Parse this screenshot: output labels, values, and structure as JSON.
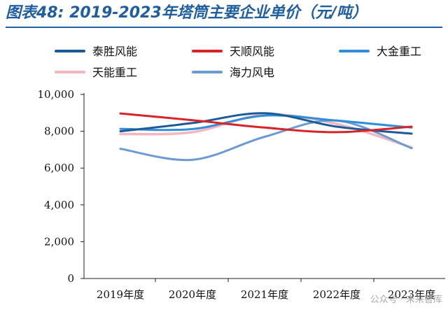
{
  "title": "图表48:  2019-2023年塔筒主要企业单价（元/吨）",
  "watermark": "公众号 · 未来智库",
  "chart_data": {
    "type": "line",
    "categories": [
      "2019年度",
      "2020年度",
      "2021年度",
      "2022年度",
      "2023年度"
    ],
    "ylim": [
      0,
      10000
    ],
    "yticks": [
      "0",
      "2,000",
      "4,000",
      "6,000",
      "8,000",
      "10,000"
    ],
    "ytick_values": [
      0,
      2000,
      4000,
      6000,
      8000,
      10000
    ],
    "grid": false,
    "legend_position": "top",
    "series": [
      {
        "name": "泰胜风能",
        "color": "#1d5b97",
        "values": [
          8000,
          8450,
          8980,
          8250,
          7870
        ]
      },
      {
        "name": "天顺风能",
        "color": "#d6242a",
        "values": [
          8970,
          8600,
          8200,
          7950,
          8250
        ]
      },
      {
        "name": "大金重工",
        "color": "#2f8fd8",
        "values": [
          8130,
          8120,
          8850,
          8580,
          8200
        ]
      },
      {
        "name": "天能重工",
        "color": "#f4b6bf",
        "values": [
          7850,
          7950,
          8900,
          8400,
          7120
        ]
      },
      {
        "name": "海力风电",
        "color": "#6b9bd2",
        "values": [
          7050,
          6450,
          7700,
          8580,
          7080
        ]
      }
    ]
  }
}
